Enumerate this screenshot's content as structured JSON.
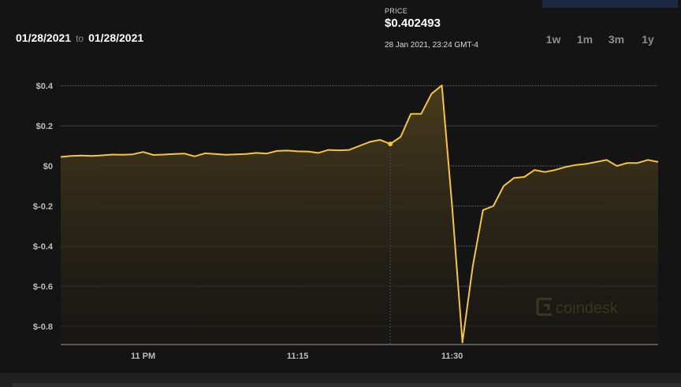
{
  "header": {
    "date_from": "01/28/2021",
    "to_label": "to",
    "date_to": "01/28/2021"
  },
  "price": {
    "label": "PRICE",
    "value": "$0.402493",
    "time": "28 Jan 2021, 23:24 GMT-4"
  },
  "range_tabs": [
    "1w",
    "1m",
    "3m",
    "1y"
  ],
  "watermark": "coindesk",
  "colors": {
    "background": "#141414",
    "line": "#f5c542",
    "accent_block": "#1c2740",
    "grid": "#8a8a8a"
  },
  "chart_data": {
    "type": "area",
    "ylim": [
      -0.88,
      0.42
    ],
    "yticks": [
      0.4,
      0.2,
      0,
      -0.2,
      -0.4,
      -0.6,
      -0.8
    ],
    "ytick_labels": [
      "$0.4",
      "$0.2",
      "$0",
      "$-0.2",
      "$-0.4",
      "$-0.6",
      "$-0.8"
    ],
    "x_range": [
      52,
      110
    ],
    "xticks": [
      60,
      75,
      90
    ],
    "xtick_labels": [
      "11 PM",
      "11:15",
      "11:30"
    ],
    "grid": true,
    "highlight_x": 84,
    "x": [
      52,
      53,
      54,
      55,
      56,
      57,
      58,
      59,
      60,
      61,
      62,
      63,
      64,
      65,
      66,
      67,
      68,
      69,
      70,
      71,
      72,
      73,
      74,
      75,
      76,
      77,
      78,
      79,
      80,
      81,
      82,
      83,
      84,
      85,
      86,
      87,
      88,
      89,
      90,
      91,
      92,
      93,
      94,
      95,
      96,
      97,
      98,
      99,
      100,
      101,
      102,
      103,
      104,
      105,
      106,
      107,
      108,
      109,
      110
    ],
    "y": [
      0.045,
      0.05,
      0.052,
      0.05,
      0.053,
      0.057,
      0.056,
      0.058,
      0.07,
      0.055,
      0.057,
      0.06,
      0.062,
      0.048,
      0.063,
      0.06,
      0.056,
      0.058,
      0.06,
      0.065,
      0.062,
      0.075,
      0.077,
      0.073,
      0.072,
      0.065,
      0.08,
      0.078,
      0.08,
      0.1,
      0.12,
      0.13,
      0.11,
      0.145,
      0.26,
      0.26,
      0.36,
      0.402,
      -0.2,
      -0.88,
      -0.5,
      -0.22,
      -0.2,
      -0.1,
      -0.06,
      -0.055,
      -0.02,
      -0.03,
      -0.02,
      -0.005,
      0.005,
      0.01,
      0.02,
      0.03,
      0.0,
      0.015,
      0.015,
      0.03,
      0.02
    ]
  }
}
